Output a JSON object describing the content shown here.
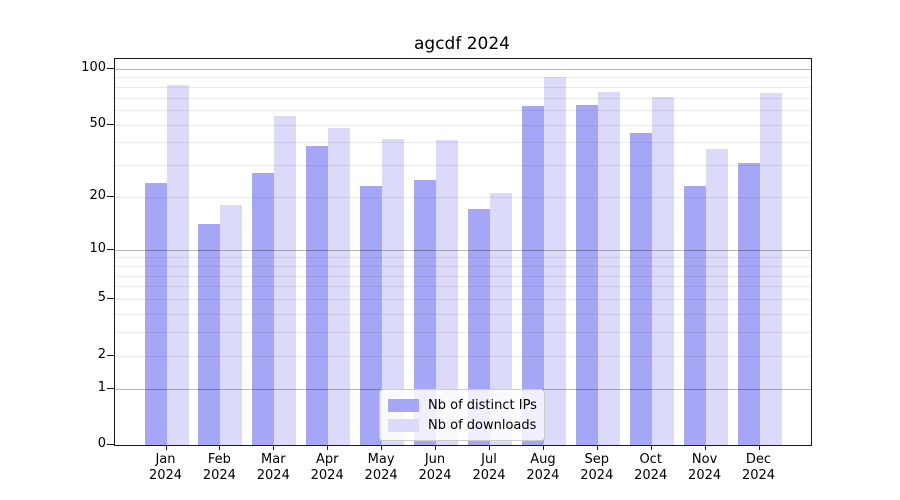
{
  "chart_data": {
    "type": "bar",
    "title": "agcdf 2024",
    "categories": [
      "Jan 2024",
      "Feb 2024",
      "Mar 2024",
      "Apr 2024",
      "May 2024",
      "Jun 2024",
      "Jul 2024",
      "Aug 2024",
      "Sep 2024",
      "Oct 2024",
      "Nov 2024",
      "Dec 2024"
    ],
    "series": [
      {
        "name": "Nb of distinct IPs",
        "color": "#a6a6f6",
        "values": [
          24,
          14,
          27,
          38,
          23,
          25,
          17,
          63,
          64,
          45,
          23,
          31
        ]
      },
      {
        "name": "Nb of downloads",
        "color": "#dbdbf9",
        "values": [
          82,
          18,
          56,
          48,
          42,
          41,
          21,
          90,
          75,
          71,
          37,
          74
        ]
      }
    ],
    "yscale": "log1p",
    "y_ticks": [
      100,
      50,
      20,
      10,
      5,
      2,
      1,
      0
    ],
    "ylim": [
      0,
      113
    ],
    "grid": "both",
    "legend_position": "lower center",
    "xlabel": "",
    "ylabel": ""
  }
}
